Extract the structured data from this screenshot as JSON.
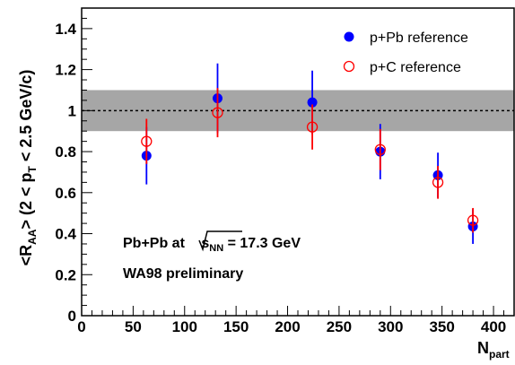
{
  "chart_data": {
    "type": "scatter",
    "title": "",
    "xlabel": {
      "main": "N",
      "sub": "part"
    },
    "ylabel": {
      "p1": "<R",
      "p1sub": "AA",
      "p2": ">  (2 < p",
      "p2sub": "T",
      "p3": " < 2.5 GeV/c)"
    },
    "xlim": [
      0,
      420
    ],
    "ylim": [
      0,
      1.5
    ],
    "x_ticks": [
      "0",
      "50",
      "100",
      "150",
      "200",
      "250",
      "300",
      "350",
      "400"
    ],
    "y_ticks": [
      "0",
      "0.2",
      "0.4",
      "0.6",
      "0.8",
      "1",
      "1.2",
      "1.4"
    ],
    "x_tick_values": [
      0,
      50,
      100,
      150,
      200,
      250,
      300,
      350,
      400
    ],
    "y_tick_values": [
      0,
      0.2,
      0.4,
      0.6,
      0.8,
      1.0,
      1.2,
      1.4
    ],
    "reference_line": 1.0,
    "systematic_band": [
      0.9,
      1.1
    ],
    "band_color": "#a6a6a6",
    "grid": false,
    "legend_position": "top-right",
    "series": [
      {
        "name": "p+Pb reference",
        "marker": "filled-circle",
        "color": "#0000ff",
        "points": [
          {
            "x": 63,
            "y": 0.78,
            "err": 0.14
          },
          {
            "x": 132,
            "y": 1.06,
            "err": 0.17
          },
          {
            "x": 224,
            "y": 1.04,
            "err": 0.155
          },
          {
            "x": 290,
            "y": 0.8,
            "err": 0.135
          },
          {
            "x": 346,
            "y": 0.685,
            "err": 0.11
          },
          {
            "x": 380,
            "y": 0.435,
            "err": 0.085
          }
        ]
      },
      {
        "name": "p+C reference",
        "marker": "open-circle",
        "color": "#ff0000",
        "points": [
          {
            "x": 63,
            "y": 0.85,
            "err": 0.11
          },
          {
            "x": 132,
            "y": 0.99,
            "err": 0.12
          },
          {
            "x": 224,
            "y": 0.92,
            "err": 0.11
          },
          {
            "x": 290,
            "y": 0.81,
            "err": 0.1
          },
          {
            "x": 346,
            "y": 0.65,
            "err": 0.08
          },
          {
            "x": 380,
            "y": 0.465,
            "err": 0.06
          }
        ]
      }
    ],
    "annotations": {
      "collision_prefix": "Pb+Pb at ",
      "sqrt_s": "s",
      "sqrt_s_sub": "NN",
      "collision_suffix": " = 17.3 GeV",
      "experiment": "WA98 preliminary"
    }
  }
}
